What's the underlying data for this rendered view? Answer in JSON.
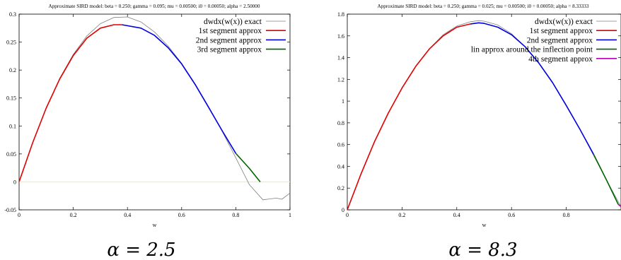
{
  "colors": {
    "exact": "#808080",
    "seg1": "#e00000",
    "seg2": "#0000e0",
    "seg3": "#006400",
    "seg4": "#b000b0",
    "zero_line": "#f3f0a0"
  },
  "chart_data": [
    {
      "type": "line",
      "title": "Approximate SIRD model:  beta = 0.250;  gamma = 0.095;  mu = 0.00500;  i0 = 0.00050;  alpha = 2.50000",
      "xlabel": "w",
      "ylabel": "",
      "xlim": [
        0,
        1
      ],
      "ylim": [
        -0.05,
        0.3
      ],
      "xticks": [
        "0",
        "0.2",
        "0.4",
        "0.6",
        "0.8",
        "1"
      ],
      "yticks": [
        "-0.05",
        "0",
        "0.05",
        "0.1",
        "0.15",
        "0.2",
        "0.25",
        "0.3"
      ],
      "zero_line": true,
      "legend_position": "top-right",
      "caption": "α = 2.5",
      "series": [
        {
          "name": "dwdx(w(x)) exact",
          "color_key": "exact",
          "x": [
            0,
            0.05,
            0.1,
            0.15,
            0.2,
            0.25,
            0.3,
            0.35,
            0.4,
            0.45,
            0.5,
            0.55,
            0.6,
            0.65,
            0.7,
            0.75,
            0.8,
            0.85,
            0.9,
            0.95,
            0.97,
            1.0
          ],
          "y": [
            0,
            0.07,
            0.132,
            0.185,
            0.228,
            0.261,
            0.283,
            0.294,
            0.295,
            0.286,
            0.268,
            0.243,
            0.212,
            0.175,
            0.134,
            0.09,
            0.043,
            -0.005,
            -0.032,
            -0.029,
            -0.031,
            -0.02
          ]
        },
        {
          "name": "1st segment approx",
          "color_key": "seg1",
          "x": [
            0,
            0.05,
            0.1,
            0.15,
            0.2,
            0.25,
            0.3,
            0.35,
            0.38
          ],
          "y": [
            0,
            0.07,
            0.132,
            0.184,
            0.226,
            0.257,
            0.275,
            0.281,
            0.281
          ]
        },
        {
          "name": "2nd segment approx",
          "color_key": "seg2",
          "x": [
            0.38,
            0.45,
            0.5,
            0.55,
            0.6,
            0.65,
            0.7,
            0.75,
            0.8
          ],
          "y": [
            0.281,
            0.275,
            0.262,
            0.24,
            0.211,
            0.174,
            0.133,
            0.091,
            0.051
          ]
        },
        {
          "name": "3rd segment approx",
          "color_key": "seg3",
          "x": [
            0.8,
            0.85,
            0.89
          ],
          "y": [
            0.051,
            0.024,
            0
          ]
        }
      ]
    },
    {
      "type": "line",
      "title": "Approximate SIRD model:  beta = 0.250;  gamma = 0.025;  mu = 0.00500;  i0 = 0.00050;  alpha = 8.33333",
      "xlabel": "w",
      "ylabel": "",
      "xlim": [
        0,
        1
      ],
      "ylim": [
        0,
        1.8
      ],
      "xticks": [
        "0",
        "0.2",
        "0.4",
        "0.6",
        "0.8"
      ],
      "yticks": [
        "0",
        "0.2",
        "0.4",
        "0.6",
        "0.8",
        "1",
        "1.2",
        "1.4",
        "1.6",
        "1.8"
      ],
      "zero_line": false,
      "legend_position": "top-right",
      "caption": "α = 8.3",
      "series": [
        {
          "name": "dwdx(w(x)) exact",
          "color_key": "exact",
          "x": [
            0,
            0.05,
            0.1,
            0.15,
            0.2,
            0.25,
            0.3,
            0.35,
            0.4,
            0.45,
            0.48,
            0.5,
            0.55,
            0.6,
            0.65,
            0.7,
            0.75,
            0.8,
            0.85,
            0.9,
            0.95,
            1.0
          ],
          "y": [
            0,
            0.33,
            0.63,
            0.89,
            1.12,
            1.32,
            1.48,
            1.61,
            1.69,
            1.73,
            1.74,
            1.735,
            1.7,
            1.62,
            1.5,
            1.35,
            1.17,
            0.96,
            0.74,
            0.5,
            0.26,
            0.03
          ]
        },
        {
          "name": "1st segment approx",
          "color_key": "seg1",
          "x": [
            0,
            0.05,
            0.1,
            0.15,
            0.2,
            0.25,
            0.3,
            0.35,
            0.4,
            0.45
          ],
          "y": [
            0,
            0.33,
            0.63,
            0.89,
            1.12,
            1.32,
            1.48,
            1.6,
            1.68,
            1.71
          ]
        },
        {
          "name": "2nd segment approx",
          "color_key": "seg2",
          "x": [
            0.45,
            0.48,
            0.5,
            0.55,
            0.6,
            0.65,
            0.7,
            0.75,
            0.8,
            0.85,
            0.9
          ],
          "y": [
            1.71,
            1.72,
            1.715,
            1.68,
            1.61,
            1.5,
            1.35,
            1.17,
            0.96,
            0.74,
            0.51
          ]
        },
        {
          "name": "lin approx around the inflection point",
          "color_key": "seg3",
          "x": [
            0.9,
            0.95,
            0.99
          ],
          "y": [
            0.51,
            0.26,
            0.05
          ]
        },
        {
          "name": "4th segment approx",
          "color_key": "seg4",
          "x": [
            0.99,
            1.0
          ],
          "y": [
            0.05,
            0.03
          ]
        }
      ]
    }
  ]
}
